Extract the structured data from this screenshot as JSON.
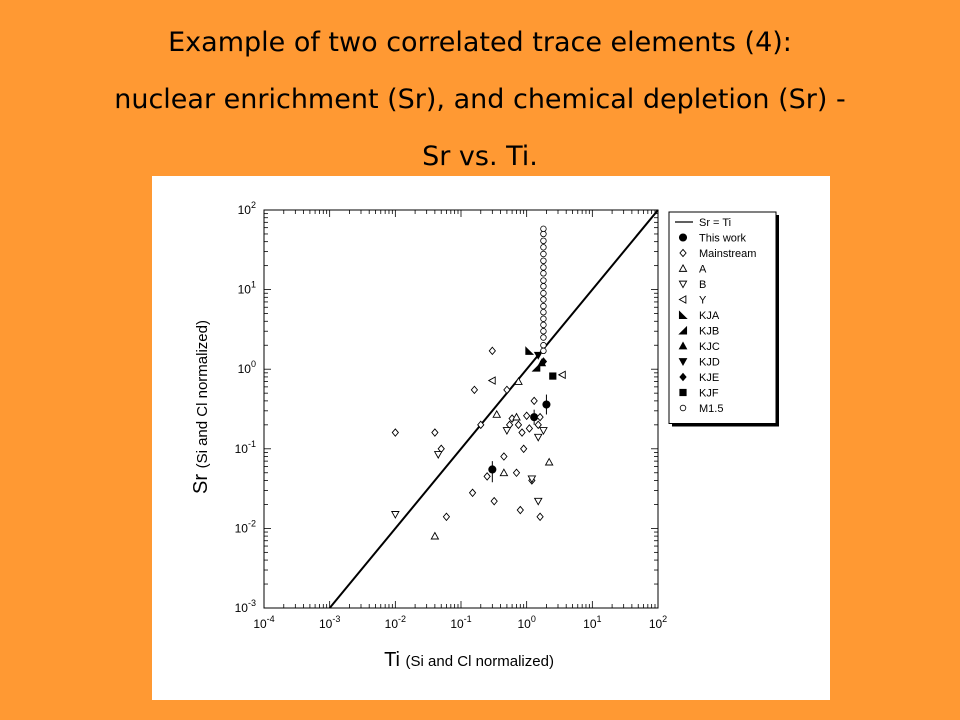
{
  "title_lines": [
    "Example of two correlated trace elements (4):",
    "nuclear enrichment (Sr), and chemical depletion (Sr) -",
    "Sr vs. Ti."
  ],
  "chart_data": {
    "type": "scatter",
    "xscale": "log",
    "yscale": "log",
    "xlim": [
      0.0001,
      100
    ],
    "ylim": [
      0.001,
      100
    ],
    "xlabel_main": "Ti",
    "xlabel_sub": "(Si and Cl normalized)",
    "ylabel_main": "Sr",
    "ylabel_sub": "(Si and Cl normalized)",
    "x_ticks": [
      {
        "base": "10",
        "exp": "-4",
        "value": 0.0001
      },
      {
        "base": "10",
        "exp": "-3",
        "value": 0.001
      },
      {
        "base": "10",
        "exp": "-2",
        "value": 0.01
      },
      {
        "base": "10",
        "exp": "-1",
        "value": 0.1
      },
      {
        "base": "10",
        "exp": "0",
        "value": 1
      },
      {
        "base": "10",
        "exp": "1",
        "value": 10
      },
      {
        "base": "10",
        "exp": "2",
        "value": 100
      }
    ],
    "y_ticks": [
      {
        "base": "10",
        "exp": "-3",
        "value": 0.001
      },
      {
        "base": "10",
        "exp": "-2",
        "value": 0.01
      },
      {
        "base": "10",
        "exp": "-1",
        "value": 0.1
      },
      {
        "base": "10",
        "exp": "0",
        "value": 1
      },
      {
        "base": "10",
        "exp": "1",
        "value": 10
      },
      {
        "base": "10",
        "exp": "2",
        "value": 100
      }
    ],
    "legend_position": "top-right",
    "reference_line": {
      "name": "Sr = Ti",
      "from": [
        0.001,
        0.001
      ],
      "to": [
        100,
        100
      ]
    },
    "series": [
      {
        "name": "This work",
        "marker": "circle-filled",
        "points": [
          [
            0.3,
            0.055
          ],
          [
            1.3,
            0.25
          ],
          [
            2.0,
            0.36
          ]
        ],
        "error_bars": [
          [
            0.3,
            0.038,
            0.07
          ],
          [
            1.3,
            0.2,
            0.31
          ],
          [
            2.0,
            0.27,
            0.48
          ]
        ]
      },
      {
        "name": "Mainstream",
        "marker": "diamond-open",
        "points": [
          [
            0.01,
            0.16
          ],
          [
            0.04,
            0.16
          ],
          [
            0.05,
            0.1
          ],
          [
            0.06,
            0.014
          ],
          [
            0.15,
            0.028
          ],
          [
            0.16,
            0.55
          ],
          [
            0.2,
            0.2
          ],
          [
            0.25,
            0.045
          ],
          [
            0.3,
            1.7
          ],
          [
            0.32,
            0.022
          ],
          [
            0.45,
            0.08
          ],
          [
            0.5,
            0.55
          ],
          [
            0.55,
            0.2
          ],
          [
            0.6,
            0.24
          ],
          [
            0.7,
            0.05
          ],
          [
            0.75,
            0.2
          ],
          [
            0.8,
            0.017
          ],
          [
            0.85,
            0.16
          ],
          [
            0.9,
            0.1
          ],
          [
            1.0,
            0.26
          ],
          [
            1.1,
            0.18
          ],
          [
            1.2,
            0.04
          ],
          [
            1.3,
            0.4
          ],
          [
            1.5,
            0.2
          ],
          [
            1.6,
            0.25
          ],
          [
            1.6,
            0.014
          ]
        ]
      },
      {
        "name": "A",
        "marker": "triangle-up-open",
        "points": [
          [
            0.04,
            0.008
          ],
          [
            0.35,
            0.27
          ],
          [
            0.45,
            0.05
          ],
          [
            0.7,
            0.25
          ],
          [
            0.75,
            0.7
          ],
          [
            2.2,
            0.068
          ]
        ]
      },
      {
        "name": "B",
        "marker": "triangle-down-open",
        "points": [
          [
            0.01,
            0.015
          ],
          [
            0.045,
            0.085
          ],
          [
            0.5,
            0.17
          ],
          [
            1.2,
            0.042
          ],
          [
            1.5,
            0.022
          ],
          [
            1.8,
            0.17
          ],
          [
            1.5,
            0.14
          ]
        ]
      },
      {
        "name": "Y",
        "marker": "triangle-left-open",
        "points": [
          [
            0.3,
            0.72
          ],
          [
            3.5,
            0.85
          ]
        ]
      },
      {
        "name": "KJA",
        "marker": "triangle-right-filled",
        "points": [
          [
            1.1,
            1.7
          ]
        ]
      },
      {
        "name": "KJB",
        "marker": "triangle-up-right-filled",
        "points": [
          [
            1.4,
            1.05
          ]
        ]
      },
      {
        "name": "KJC",
        "marker": "triangle-up-filled",
        "points": [
          [
            1.7,
            1.2
          ]
        ]
      },
      {
        "name": "KJD",
        "marker": "triangle-down-filled",
        "points": [
          [
            1.5,
            1.5
          ]
        ]
      },
      {
        "name": "KJE",
        "marker": "diamond-filled",
        "points": [
          [
            1.8,
            1.25
          ]
        ]
      },
      {
        "name": "KJF",
        "marker": "square-filled",
        "points": [
          [
            2.5,
            0.82
          ]
        ]
      },
      {
        "name": "M1.5",
        "marker": "circle-open",
        "points": [
          [
            1.8,
            1.7
          ],
          [
            1.8,
            2.0
          ],
          [
            1.8,
            2.5
          ],
          [
            1.8,
            3.0
          ],
          [
            1.8,
            3.6
          ],
          [
            1.8,
            4.3
          ],
          [
            1.8,
            5.2
          ],
          [
            1.8,
            6.2
          ],
          [
            1.8,
            7.5
          ],
          [
            1.8,
            9.0
          ],
          [
            1.8,
            11
          ],
          [
            1.8,
            13
          ],
          [
            1.8,
            16
          ],
          [
            1.8,
            19
          ],
          [
            1.8,
            23
          ],
          [
            1.8,
            28
          ],
          [
            1.8,
            34
          ],
          [
            1.8,
            41
          ],
          [
            1.8,
            50
          ],
          [
            1.8,
            58
          ]
        ]
      }
    ]
  }
}
